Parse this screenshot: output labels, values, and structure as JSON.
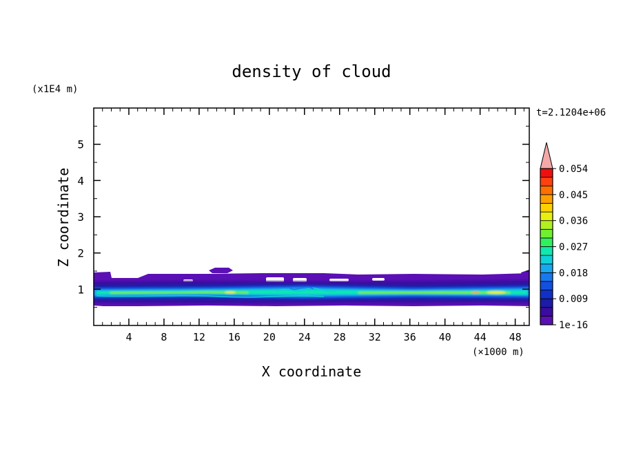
{
  "chart_data": {
    "type": "heatmap",
    "title": "density of cloud",
    "xlabel": "X coordinate",
    "ylabel": "Z coordinate",
    "x_unit": "(×1000 m)",
    "y_unit": "(x1E4 m)",
    "time_label": "t=2.1204e+06",
    "xlim": [
      0,
      49.6
    ],
    "ylim": [
      0,
      6
    ],
    "x_ticks": [
      "4",
      "8",
      "12",
      "16",
      "20",
      "24",
      "28",
      "32",
      "36",
      "40",
      "44",
      "48"
    ],
    "y_ticks": [
      "1",
      "2",
      "3",
      "4",
      "5"
    ],
    "colorbar": {
      "tick_labels": [
        "1e-16",
        "0.009",
        "0.018",
        "0.027",
        "0.036",
        "0.045",
        "0.054"
      ],
      "colors": [
        "#5a10b4",
        "#3a0ca0",
        "#1c1ca8",
        "#1030c8",
        "#1250e0",
        "#1878f0",
        "#18a8f0",
        "#10d0d8",
        "#10e8b0",
        "#30f060",
        "#70f030",
        "#b0f020",
        "#e8f010",
        "#ffd000",
        "#ffa000",
        "#ff7000",
        "#ff4010",
        "#ee1010"
      ],
      "extend_color": "#f4a8a8"
    }
  }
}
